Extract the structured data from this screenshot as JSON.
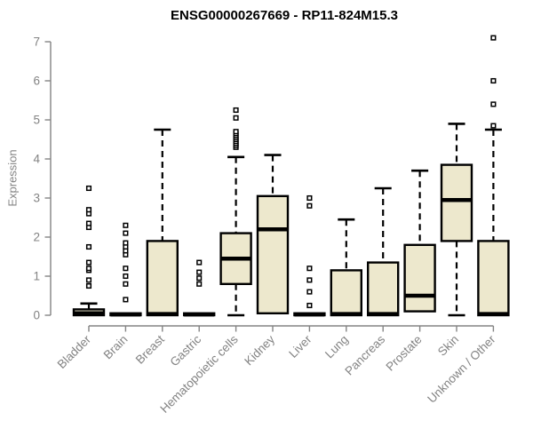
{
  "title": "ENSG00000267669 - RP11-824M15.3",
  "colors": {
    "box_fill": "#EDE8CD",
    "box_border": "#000000",
    "median": "#000000",
    "whisker": "#000000",
    "outlier_stroke": "#000000",
    "outlier_fill": "#ffffff",
    "axis_line": "#848484",
    "tick_label": "#838383",
    "title_color": "#000000"
  },
  "chart_data": {
    "type": "boxplot",
    "title": "ENSG00000267669 - RP11-824M15.3",
    "xlabel": "",
    "ylabel": "Expression",
    "ylim": [
      0,
      7
    ],
    "yticks": [
      0,
      1,
      2,
      3,
      4,
      5,
      6,
      7
    ],
    "grid": false,
    "legend": "none",
    "categories": [
      "Bladder",
      "Brain",
      "Breast",
      "Gastric",
      "Hematopoietic cells",
      "Kidney",
      "Liver",
      "Lung",
      "Pancreas",
      "Prostate",
      "Skin",
      "Unknown / Other"
    ],
    "boxes": [
      {
        "category": "Bladder",
        "whisker_low": 0,
        "q1": 0,
        "median": 0.05,
        "q3": 0.15,
        "whisker_high": 0.3,
        "outliers": [
          0.75,
          0.9,
          1.15,
          1.2,
          1.35,
          1.75,
          2.25,
          2.35,
          2.6,
          2.7,
          3.25
        ]
      },
      {
        "category": "Brain",
        "whisker_low": 0,
        "q1": 0,
        "median": 0.02,
        "q3": 0.05,
        "whisker_high": 0.05,
        "outliers": [
          0.4,
          0.8,
          1.0,
          1.2,
          1.55,
          1.65,
          1.75,
          1.85,
          2.1,
          2.3
        ]
      },
      {
        "category": "Breast",
        "whisker_low": 0,
        "q1": 0,
        "median": 0.03,
        "q3": 1.9,
        "whisker_high": 4.75,
        "outliers": []
      },
      {
        "category": "Gastric",
        "whisker_low": 0,
        "q1": 0,
        "median": 0.02,
        "q3": 0.05,
        "whisker_high": 0.05,
        "outliers": [
          0.8,
          0.95,
          1.1,
          1.35
        ]
      },
      {
        "category": "Hematopoietic cells",
        "whisker_low": 0,
        "q1": 0.8,
        "median": 1.45,
        "q3": 2.1,
        "whisker_high": 4.05,
        "outliers": [
          4.3,
          4.35,
          4.4,
          4.45,
          4.5,
          4.55,
          4.6,
          4.65,
          4.7,
          5.05,
          5.25
        ]
      },
      {
        "category": "Kidney",
        "whisker_low": 0.05,
        "q1": 0.05,
        "median": 2.2,
        "q3": 3.05,
        "whisker_high": 4.1,
        "outliers": []
      },
      {
        "category": "Liver",
        "whisker_low": 0,
        "q1": 0,
        "median": 0.02,
        "q3": 0.05,
        "whisker_high": 0.05,
        "outliers": [
          0.25,
          0.6,
          0.9,
          1.2,
          2.8,
          3.0
        ]
      },
      {
        "category": "Lung",
        "whisker_low": 0,
        "q1": 0,
        "median": 0.03,
        "q3": 1.15,
        "whisker_high": 2.45,
        "outliers": []
      },
      {
        "category": "Pancreas",
        "whisker_low": 0,
        "q1": 0,
        "median": 0.03,
        "q3": 1.35,
        "whisker_high": 3.25,
        "outliers": []
      },
      {
        "category": "Prostate",
        "whisker_low": 0.1,
        "q1": 0.1,
        "median": 0.5,
        "q3": 1.8,
        "whisker_high": 3.7,
        "outliers": []
      },
      {
        "category": "Skin",
        "whisker_low": 0,
        "q1": 1.9,
        "median": 2.95,
        "q3": 3.85,
        "whisker_high": 4.9,
        "outliers": []
      },
      {
        "category": "Unknown / Other",
        "whisker_low": 0,
        "q1": 0,
        "median": 0.03,
        "q3": 1.9,
        "whisker_high": 4.75,
        "outliers": [
          4.85,
          5.4,
          6.0,
          7.1
        ]
      }
    ]
  }
}
